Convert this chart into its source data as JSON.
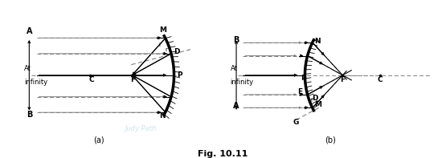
{
  "fig_title": "Fig. 10.11",
  "sub_a": "(a)",
  "sub_b": "(b)",
  "bg_color": "#ffffff",
  "lc": "#000000",
  "dc": "#555555",
  "wc": "#a8cce0"
}
